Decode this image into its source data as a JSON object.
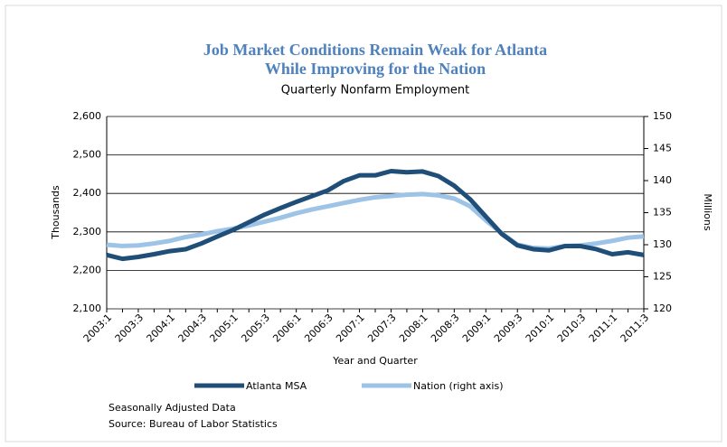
{
  "chart_data": {
    "type": "line",
    "title": "Job Market Conditions Remain Weak for Atlanta",
    "title_line2": "While Improving for the Nation",
    "subtitle": "Quarterly Nonfarm Employment",
    "x_label": "Year and Quarter",
    "y_label": "Thousands",
    "y2_label": "Millions",
    "categories": [
      "2003:1",
      null,
      "2003:3",
      null,
      "2004:1",
      null,
      "2004:3",
      null,
      "2005:1",
      null,
      "2005:3",
      null,
      "2006:1",
      null,
      "2006:3",
      null,
      "2007:1",
      null,
      "2007:3",
      null,
      "2008:1",
      null,
      "2008:3",
      null,
      "2009:1",
      null,
      "2009:3",
      null,
      "2010:1",
      null,
      "2010:3",
      null,
      "2011:1",
      null,
      "2011:3"
    ],
    "series": [
      {
        "name": "Atlanta  MSA",
        "color": "#1f4e79",
        "axis": "y",
        "values": [
          2240,
          2230,
          2235,
          2242,
          2250,
          2255,
          2270,
          2288,
          2305,
          2325,
          2345,
          2362,
          2378,
          2393,
          2408,
          2432,
          2447,
          2447,
          2458,
          2455,
          2457,
          2445,
          2420,
          2385,
          2340,
          2295,
          2265,
          2255,
          2252,
          2263,
          2263,
          2255,
          2242,
          2247,
          2240
        ]
      },
      {
        "name": "Nation (right  axis)",
        "color": "#9dc3e6",
        "axis": "y2",
        "values": [
          130.0,
          129.8,
          129.9,
          130.2,
          130.6,
          131.2,
          131.6,
          132.1,
          132.5,
          133.0,
          133.6,
          134.2,
          134.9,
          135.5,
          136.0,
          136.5,
          137.0,
          137.4,
          137.6,
          137.8,
          137.9,
          137.7,
          137.2,
          136.0,
          133.8,
          131.8,
          130.0,
          129.5,
          129.4,
          129.8,
          129.9,
          130.2,
          130.6,
          131.1,
          131.3
        ]
      }
    ],
    "ylim": [
      2100,
      2600
    ],
    "yticks": [
      {
        "value": 2100,
        "label": "2,100"
      },
      {
        "value": 2200,
        "label": "2,200"
      },
      {
        "value": 2300,
        "label": "2,300"
      },
      {
        "value": 2400,
        "label": "2,400"
      },
      {
        "value": 2500,
        "label": "2,500"
      },
      {
        "value": 2600,
        "label": "2,600"
      }
    ],
    "y2lim": [
      120,
      150
    ],
    "y2ticks": [
      120,
      125,
      130,
      135,
      140,
      145,
      150
    ],
    "grid": true,
    "notes": [
      "Seasonally Adjusted Data",
      "Source: Bureau of Labor  Statistics"
    ]
  }
}
